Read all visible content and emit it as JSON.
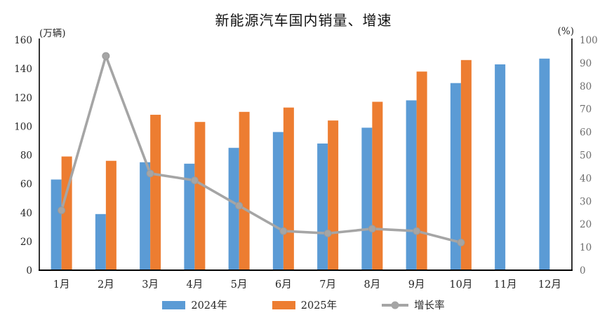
{
  "chart_data": {
    "type": "bar+line",
    "title": "新能源汽车国内销量、增速",
    "categories": [
      "1月",
      "2月",
      "3月",
      "4月",
      "5月",
      "6月",
      "7月",
      "8月",
      "9月",
      "10月",
      "11月",
      "12月"
    ],
    "series": [
      {
        "name": "2024年",
        "type": "bar",
        "axis": "left",
        "color": "#5B9BD5",
        "values": [
          63,
          39,
          75,
          74,
          85,
          96,
          88,
          99,
          118,
          130,
          143,
          147
        ]
      },
      {
        "name": "2025年",
        "type": "bar",
        "axis": "left",
        "color": "#ED7D31",
        "values": [
          79,
          76,
          108,
          103,
          110,
          113,
          104,
          117,
          138,
          146,
          null,
          null
        ]
      },
      {
        "name": "增长率",
        "type": "line",
        "axis": "right",
        "color": "#A5A5A5",
        "values": [
          26,
          93,
          42,
          39,
          28,
          17,
          16,
          18,
          17,
          12,
          null,
          null
        ]
      }
    ],
    "left_axis": {
      "unit": "(万辆)",
      "min": 0,
      "max": 160,
      "step": 20
    },
    "right_axis": {
      "unit": "(%)",
      "min": 0,
      "max": 100,
      "step": 10
    },
    "gridlines": false,
    "legend_position": "bottom",
    "axis_color": "#000000",
    "tick_color_left": "#262626",
    "tick_color_right": "#6e6e6e"
  }
}
